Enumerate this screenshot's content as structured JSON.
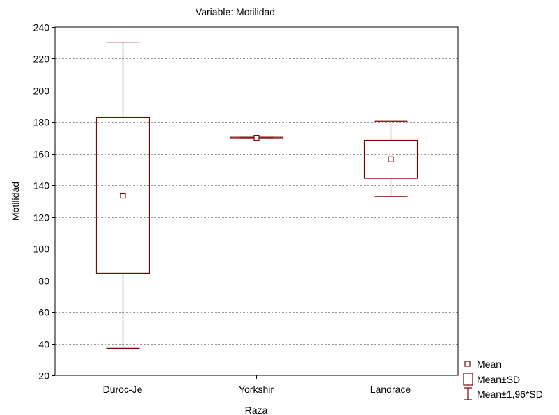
{
  "chart_data": {
    "type": "box",
    "title": "Variable: Motilidad",
    "xlabel": "Raza",
    "ylabel": "Motilidad",
    "ylim": [
      20,
      240
    ],
    "yticks": [
      20,
      40,
      60,
      80,
      100,
      120,
      140,
      160,
      180,
      200,
      220,
      240
    ],
    "categories": [
      "Duroc-Je",
      "Yorkshir",
      "Landrace"
    ],
    "series": [
      {
        "category": "Duroc-Je",
        "mean": 133.5,
        "mean_minus_sd": 84.5,
        "mean_plus_sd": 183,
        "mean_minus_196sd": 37,
        "mean_plus_196sd": 230.5
      },
      {
        "category": "Yorkshir",
        "mean": 170,
        "mean_minus_sd": 169.6,
        "mean_plus_sd": 170.4,
        "mean_minus_196sd": 169.6,
        "mean_plus_196sd": 170.4
      },
      {
        "category": "Landrace",
        "mean": 156.5,
        "mean_minus_sd": 144.5,
        "mean_plus_sd": 168.5,
        "mean_minus_196sd": 133,
        "mean_plus_196sd": 180.5
      }
    ],
    "grid": true,
    "legend": {
      "placement": "bottom-right",
      "entries": [
        {
          "marker": "square",
          "label": "Mean"
        },
        {
          "marker": "box",
          "label": "Mean±SD"
        },
        {
          "marker": "whisker",
          "label": "Mean±1,96*SD"
        }
      ]
    },
    "colors": {
      "series": "#7f0000",
      "grid": "#9a9a9a",
      "frame": "#000000"
    }
  }
}
